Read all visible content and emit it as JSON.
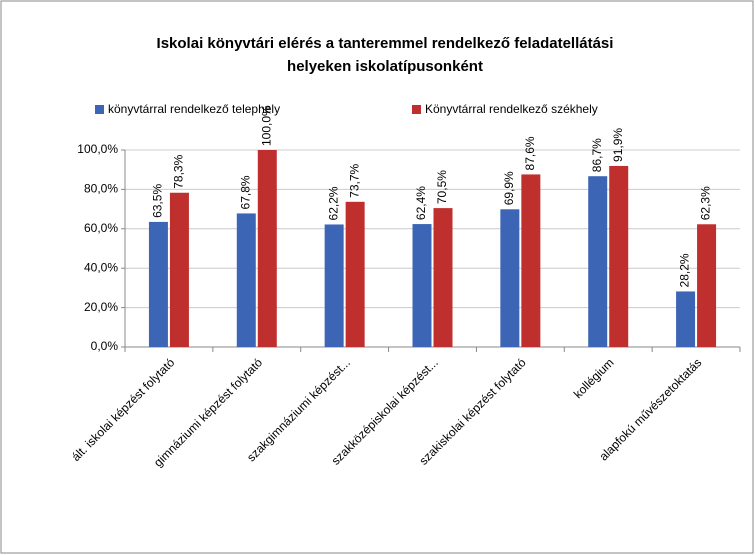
{
  "chart_data": {
    "type": "bar",
    "title": [
      "Iskolai könyvtári elérés a tanteremmel rendelkező feladatellátási",
      "helyeken iskolatípusonként"
    ],
    "categories": [
      "ált. iskolai képzést folytató",
      "gimnáziumi képzést folytató",
      "szakgimnáziumi képzést...",
      "szakközépiskolai képzést...",
      "szakiskolai képzést folytató",
      "kollégium",
      "alapfokú művészetoktatás"
    ],
    "series": [
      {
        "name": "könyvtárral rendelkező telephely",
        "color": "#3d65b5",
        "values": [
          63.5,
          67.8,
          62.2,
          62.4,
          69.9,
          86.7,
          28.2
        ],
        "value_labels": [
          "63,5%",
          "67,8%",
          "62,2%",
          "62,4%",
          "69,9%",
          "86,7%",
          "28,2%"
        ]
      },
      {
        "name": "Könyvtárral rendelkező székhely",
        "color": "#be2f2d",
        "values": [
          78.3,
          100.0,
          73.7,
          70.5,
          87.6,
          91.9,
          62.3
        ],
        "value_labels": [
          "78,3%",
          "100,0%",
          "73,7%",
          "70,5%",
          "87,6%",
          "91,9%",
          "62,3%"
        ]
      }
    ],
    "ylim": [
      0,
      100
    ],
    "yticks": [
      {
        "value": 0,
        "label": "0,0%"
      },
      {
        "value": 20,
        "label": "20,0%"
      },
      {
        "value": 40,
        "label": "40,0%"
      },
      {
        "value": 60,
        "label": "60,0%"
      },
      {
        "value": 80,
        "label": "80,0%"
      },
      {
        "value": 100,
        "label": "100,0%"
      }
    ],
    "grid": true
  }
}
